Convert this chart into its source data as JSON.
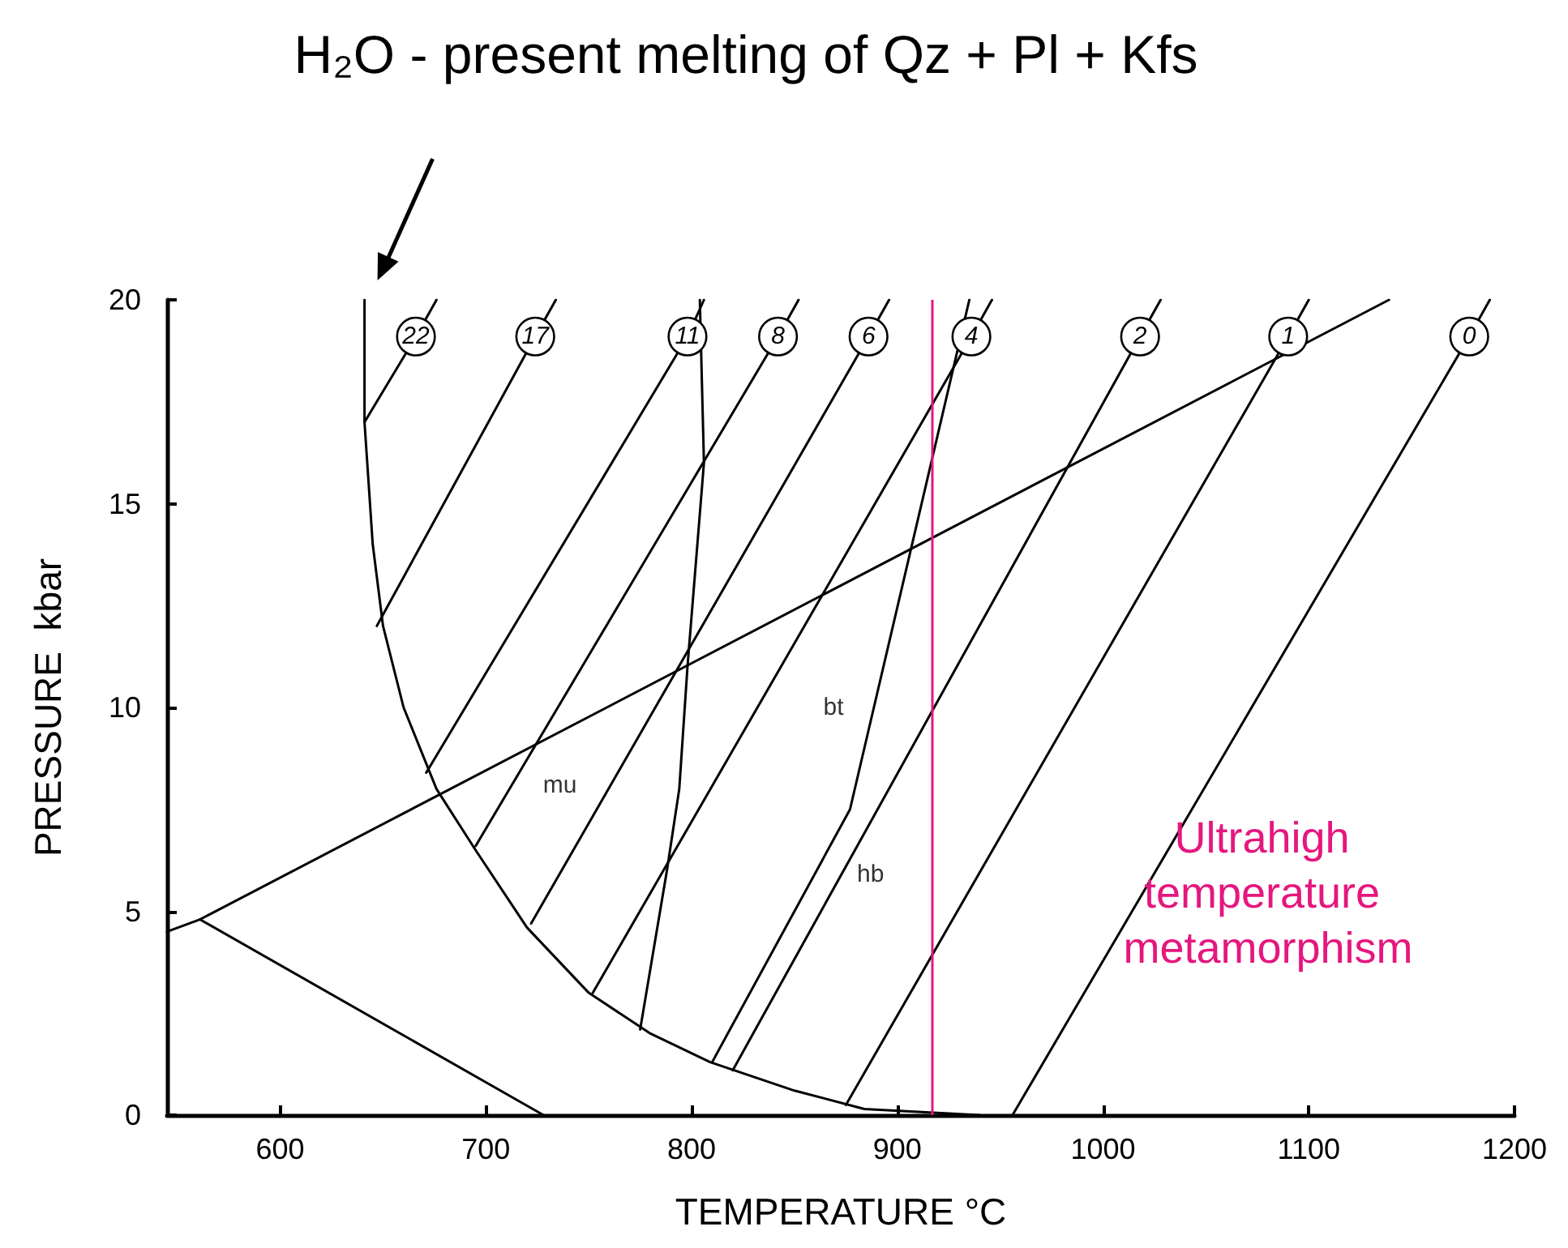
{
  "chart_data": {
    "type": "line",
    "title": "H₂O - present melting of Qz + Pl + Kfs",
    "xlabel": "TEMPERATURE °C",
    "ylabel": "PRESSURE  kbar",
    "xlim": [
      545,
      1200
    ],
    "xticks": [
      600,
      700,
      800,
      900,
      1000,
      1100,
      1200
    ],
    "ylim": [
      0,
      20
    ],
    "yticks": [
      0,
      5,
      10,
      15,
      20
    ],
    "grid": false,
    "legend": false,
    "marker": "none",
    "line_style": "solid",
    "series": [
      {
        "color": "#000000",
        "x": [
          641,
          641,
          645,
          650,
          660,
          676,
          695,
          720,
          750,
          780,
          809,
          850,
          884,
          940
        ],
        "values": [
          20,
          17,
          14,
          12,
          10,
          8,
          6.5,
          4.6,
          3.0,
          2.0,
          1.3,
          0.6,
          0.15,
          0
        ]
      },
      {
        "color": "#000000",
        "x": [
          545,
          561,
          1139
        ],
        "values": [
          4.5,
          4.8,
          20
        ]
      },
      {
        "color": "#000000",
        "x": [
          561,
          728
        ],
        "values": [
          4.8,
          0
        ]
      },
      {
        "color": "#000000",
        "x": [
          804,
          806,
          798,
          794,
          788,
          775
        ],
        "values": [
          20,
          16,
          11,
          8,
          6,
          2.1
        ]
      },
      {
        "color": "#000000",
        "x": [
          935,
          877,
          810
        ],
        "values": [
          20,
          7.5,
          1.3
        ]
      },
      {
        "name": "22",
        "color": "#000000",
        "x": [
          641,
          666,
          676
        ],
        "values": [
          17,
          19.1,
          20
        ]
      },
      {
        "name": "17",
        "color": "#000000",
        "x": [
          647,
          724,
          734
        ],
        "values": [
          12,
          19.1,
          20
        ]
      },
      {
        "name": "11",
        "color": "#000000",
        "x": [
          671,
          798,
          806
        ],
        "values": [
          8.4,
          19.1,
          20
        ]
      },
      {
        "name": "8",
        "color": "#000000",
        "x": [
          695,
          842,
          852
        ],
        "values": [
          6.6,
          19.1,
          20
        ]
      },
      {
        "name": "6",
        "color": "#000000",
        "x": [
          722,
          886,
          896
        ],
        "values": [
          4.7,
          19.1,
          20
        ]
      },
      {
        "name": "4",
        "color": "#000000",
        "x": [
          752,
          936,
          946
        ],
        "values": [
          3.0,
          19.1,
          20
        ]
      },
      {
        "name": "2",
        "color": "#000000",
        "x": [
          820,
          1018,
          1028
        ],
        "values": [
          1.1,
          19.1,
          20
        ]
      },
      {
        "name": "1",
        "color": "#000000",
        "x": [
          875,
          1090,
          1100
        ],
        "values": [
          0.25,
          19.1,
          20
        ]
      },
      {
        "name": "0",
        "color": "#000000",
        "x": [
          956,
          1178,
          1188
        ],
        "values": [
          0,
          19.1,
          20
        ]
      }
    ],
    "ref_lines": [
      {
        "axis": "x",
        "value": 917,
        "color": "#e5177e"
      }
    ],
    "annotations": [
      {
        "text": "mu",
        "x": 736,
        "y": 8.1
      },
      {
        "text": "bt",
        "x": 869,
        "y": 10
      },
      {
        "text": "hb",
        "x": 887,
        "y": 5.9
      },
      "Ultrahigh temperature metamorphism"
    ]
  }
}
